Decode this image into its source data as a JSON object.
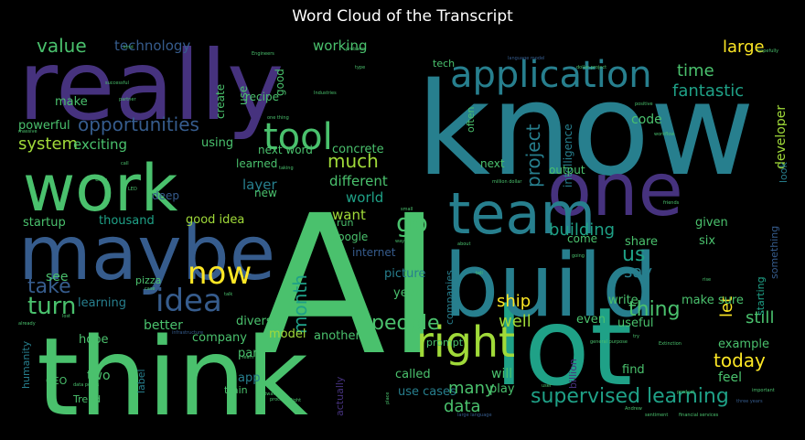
{
  "title": "Word Cloud of the Transcript",
  "chart_data": {
    "type": "wordcloud",
    "title": "Word Cloud of the Transcript",
    "background": "#000000",
    "colormap": [
      "#440154",
      "#46327e",
      "#365c8d",
      "#277f8e",
      "#1fa187",
      "#4ac16d",
      "#a0da39",
      "#fde725"
    ],
    "words": [
      {
        "text": "AI",
        "weight": 100,
        "color": "#4ac16d"
      },
      {
        "text": "know",
        "weight": 92,
        "color": "#277f8e"
      },
      {
        "text": "really",
        "weight": 78,
        "color": "#46327e"
      },
      {
        "text": "think",
        "weight": 77,
        "color": "#4ac16d"
      },
      {
        "text": "lot",
        "weight": 73,
        "color": "#1fa187"
      },
      {
        "text": "build",
        "weight": 62,
        "color": "#277f8e"
      },
      {
        "text": "one",
        "weight": 54,
        "color": "#46327e"
      },
      {
        "text": "maybe",
        "weight": 52,
        "color": "#365c8d"
      },
      {
        "text": "work",
        "weight": 50,
        "color": "#4ac16d"
      },
      {
        "text": "team",
        "weight": 42,
        "color": "#277f8e"
      },
      {
        "text": "right",
        "weight": 38,
        "color": "#a0da39"
      },
      {
        "text": "application",
        "weight": 33,
        "color": "#277f8e"
      },
      {
        "text": "tool",
        "weight": 30,
        "color": "#4ac16d"
      },
      {
        "text": "idea",
        "weight": 27,
        "color": "#365c8d"
      },
      {
        "text": "now",
        "weight": 27,
        "color": "#fde725"
      },
      {
        "text": "go",
        "weight": 22,
        "color": "#4ac16d"
      },
      {
        "text": "people",
        "weight": 21,
        "color": "#4ac16d"
      },
      {
        "text": "turn",
        "weight": 20,
        "color": "#4ac16d"
      },
      {
        "text": "supervised learning",
        "weight": 19,
        "color": "#1fa187"
      },
      {
        "text": "thing",
        "weight": 19,
        "color": "#4ac16d"
      },
      {
        "text": "us",
        "weight": 19,
        "color": "#1fa187"
      },
      {
        "text": "take",
        "weight": 19,
        "color": "#365c8d"
      },
      {
        "text": "opportunities",
        "weight": 18,
        "color": "#365c8d"
      },
      {
        "text": "project",
        "weight": 18,
        "color": "#277f8e"
      },
      {
        "text": "value",
        "weight": 17,
        "color": "#4ac16d"
      },
      {
        "text": "much",
        "weight": 17,
        "color": "#a0da39"
      },
      {
        "text": "month",
        "weight": 17,
        "color": "#1fa187"
      },
      {
        "text": "system",
        "weight": 16,
        "color": "#a0da39"
      },
      {
        "text": "large",
        "weight": 16,
        "color": "#fde725"
      },
      {
        "text": "today",
        "weight": 16,
        "color": "#fde725"
      },
      {
        "text": "say",
        "weight": 16,
        "color": "#277f8e"
      },
      {
        "text": "many",
        "weight": 16,
        "color": "#4ac16d"
      },
      {
        "text": "data",
        "weight": 16,
        "color": "#4ac16d"
      },
      {
        "text": "well",
        "weight": 16,
        "color": "#a0da39"
      },
      {
        "text": "time",
        "weight": 15,
        "color": "#4ac16d"
      },
      {
        "text": "fantastic",
        "weight": 15,
        "color": "#1fa187"
      },
      {
        "text": "building",
        "weight": 15,
        "color": "#1fa187"
      },
      {
        "text": "let",
        "weight": 15,
        "color": "#fde725"
      },
      {
        "text": "still",
        "weight": 15,
        "color": "#4ac16d"
      },
      {
        "text": "ship",
        "weight": 15,
        "color": "#fde725"
      },
      {
        "text": "exciting",
        "weight": 14,
        "color": "#4ac16d"
      },
      {
        "text": "technology",
        "weight": 14,
        "color": "#365c8d"
      },
      {
        "text": "working",
        "weight": 14,
        "color": "#4ac16d"
      },
      {
        "text": "different",
        "weight": 14,
        "color": "#4ac16d"
      },
      {
        "text": "world",
        "weight": 14,
        "color": "#1fa187"
      },
      {
        "text": "want",
        "weight": 14,
        "color": "#a0da39"
      },
      {
        "text": "layer",
        "weight": 14,
        "color": "#277f8e"
      },
      {
        "text": "see",
        "weight": 13,
        "color": "#4ac16d"
      },
      {
        "text": "better",
        "weight": 13,
        "color": "#4ac16d"
      },
      {
        "text": "two",
        "weight": 13,
        "color": "#4ac16d"
      },
      {
        "text": "feel",
        "weight": 13,
        "color": "#4ac16d"
      },
      {
        "text": "will",
        "weight": 13,
        "color": "#4ac16d"
      },
      {
        "text": "developer",
        "weight": 13,
        "color": "#a0da39"
      },
      {
        "text": "code",
        "weight": 12,
        "color": "#4ac16d"
      },
      {
        "text": "make",
        "weight": 12,
        "color": "#4ac16d"
      },
      {
        "text": "powerful",
        "weight": 12,
        "color": "#4ac16d"
      },
      {
        "text": "using",
        "weight": 12,
        "color": "#4ac16d"
      },
      {
        "text": "concrete",
        "weight": 12,
        "color": "#4ac16d"
      },
      {
        "text": "thousand",
        "weight": 12,
        "color": "#1fa187"
      },
      {
        "text": "good idea",
        "weight": 12,
        "color": "#a0da39"
      },
      {
        "text": "startup",
        "weight": 12,
        "color": "#4ac16d"
      },
      {
        "text": "learning",
        "weight": 12,
        "color": "#277f8e"
      },
      {
        "text": "hope",
        "weight": 12,
        "color": "#4ac16d"
      },
      {
        "text": "company",
        "weight": 12,
        "color": "#4ac16d"
      },
      {
        "text": "model",
        "weight": 12,
        "color": "#a0da39"
      },
      {
        "text": "diverse",
        "weight": 12,
        "color": "#4ac16d"
      },
      {
        "text": "part",
        "weight": 12,
        "color": "#4ac16d"
      },
      {
        "text": "another",
        "weight": 12,
        "color": "#4ac16d"
      },
      {
        "text": "app",
        "weight": 12,
        "color": "#277f8e"
      },
      {
        "text": "called",
        "weight": 12,
        "color": "#4ac16d"
      },
      {
        "text": "use cases",
        "weight": 12,
        "color": "#277f8e"
      },
      {
        "text": "play",
        "weight": 12,
        "color": "#4ac16d"
      },
      {
        "text": "find",
        "weight": 12,
        "color": "#4ac16d"
      },
      {
        "text": "make sure",
        "weight": 12,
        "color": "#4ac16d"
      },
      {
        "text": "example",
        "weight": 12,
        "color": "#4ac16d"
      },
      {
        "text": "write",
        "weight": 12,
        "color": "#4ac16d"
      },
      {
        "text": "even",
        "weight": 12,
        "color": "#4ac16d"
      },
      {
        "text": "useful",
        "weight": 12,
        "color": "#4ac16d"
      },
      {
        "text": "given",
        "weight": 12,
        "color": "#4ac16d"
      },
      {
        "text": "share",
        "weight": 12,
        "color": "#4ac16d"
      },
      {
        "text": "six",
        "weight": 12,
        "color": "#4ac16d"
      },
      {
        "text": "picture",
        "weight": 12,
        "color": "#277f8e"
      },
      {
        "text": "year",
        "weight": 12,
        "color": "#4ac16d"
      },
      {
        "text": "Google",
        "weight": 11,
        "color": "#4ac16d"
      },
      {
        "text": "internet",
        "weight": 11,
        "color": "#365c8d"
      },
      {
        "text": "come",
        "weight": 11,
        "color": "#4ac16d"
      },
      {
        "text": "intelligence",
        "weight": 11,
        "color": "#277f8e"
      },
      {
        "text": "output",
        "weight": 11,
        "color": "#4ac16d"
      },
      {
        "text": "next",
        "weight": 11,
        "color": "#4ac16d"
      },
      {
        "text": "next word",
        "weight": 11,
        "color": "#4ac16d"
      },
      {
        "text": "learned",
        "weight": 11,
        "color": "#4ac16d"
      },
      {
        "text": "new",
        "weight": 11,
        "color": "#4ac16d"
      },
      {
        "text": "deep",
        "weight": 11,
        "color": "#365c8d"
      },
      {
        "text": "recipe",
        "weight": 11,
        "color": "#4ac16d"
      },
      {
        "text": "create",
        "weight": 11,
        "color": "#4ac16d"
      },
      {
        "text": "use",
        "weight": 11,
        "color": "#4ac16d"
      },
      {
        "text": "good",
        "weight": 11,
        "color": "#4ac16d"
      },
      {
        "text": "tech",
        "weight": 10,
        "color": "#4ac16d"
      },
      {
        "text": "often",
        "weight": 10,
        "color": "#4ac16d"
      },
      {
        "text": "companies",
        "weight": 10,
        "color": "#277f8e"
      },
      {
        "text": "billion",
        "weight": 10,
        "color": "#46327e"
      },
      {
        "text": "prompt",
        "weight": 10,
        "color": "#4ac16d"
      },
      {
        "text": "pizza",
        "weight": 10,
        "color": "#4ac16d"
      },
      {
        "text": "CEO",
        "weight": 10,
        "color": "#4ac16d"
      },
      {
        "text": "Trend",
        "weight": 10,
        "color": "#4ac16d"
      },
      {
        "text": "humanity",
        "weight": 10,
        "color": "#277f8e"
      },
      {
        "text": "label",
        "weight": 10,
        "color": "#277f8e"
      },
      {
        "text": "train",
        "weight": 10,
        "color": "#4ac16d"
      },
      {
        "text": "actually",
        "weight": 10,
        "color": "#46327e"
      },
      {
        "text": "look",
        "weight": 10,
        "color": "#277f8e"
      },
      {
        "text": "something",
        "weight": 10,
        "color": "#365c8d"
      },
      {
        "text": "starting",
        "weight": 10,
        "color": "#1fa187"
      },
      {
        "text": "run",
        "weight": 10,
        "color": "#4ac16d"
      },
      {
        "text": "one thing",
        "weight": 6,
        "color": "#4ac16d"
      },
      {
        "text": "million dollar",
        "weight": 6,
        "color": "#4ac16d"
      },
      {
        "text": "dollar project",
        "weight": 6,
        "color": "#4ac16d"
      },
      {
        "text": "language model",
        "weight": 6,
        "color": "#365c8d"
      },
      {
        "text": "large language",
        "weight": 6,
        "color": "#365c8d"
      },
      {
        "text": "general purpose",
        "weight": 6,
        "color": "#4ac16d"
      },
      {
        "text": "financial services",
        "weight": 6,
        "color": "#4ac16d"
      },
      {
        "text": "three years",
        "weight": 6,
        "color": "#365c8d"
      },
      {
        "text": "data points",
        "weight": 6,
        "color": "#4ac16d"
      },
      {
        "text": "hopefully",
        "weight": 6,
        "color": "#4ac16d"
      },
      {
        "text": "positive",
        "weight": 6,
        "color": "#4ac16d"
      },
      {
        "text": "successful",
        "weight": 6,
        "color": "#4ac16d"
      },
      {
        "text": "partner",
        "weight": 6,
        "color": "#4ac16d"
      },
      {
        "text": "Engineers",
        "weight": 6,
        "color": "#4ac16d"
      },
      {
        "text": "Industries",
        "weight": 6,
        "color": "#4ac16d"
      },
      {
        "text": "workflow",
        "weight": 6,
        "color": "#4ac16d"
      },
      {
        "text": "product",
        "weight": 6,
        "color": "#4ac16d"
      },
      {
        "text": "important",
        "weight": 6,
        "color": "#4ac16d"
      },
      {
        "text": "Andrew",
        "weight": 6,
        "color": "#4ac16d"
      },
      {
        "text": "user",
        "weight": 6,
        "color": "#4ac16d"
      },
      {
        "text": "friends",
        "weight": 6,
        "color": "#4ac16d"
      },
      {
        "text": "sentiment",
        "weight": 6,
        "color": "#4ac16d"
      },
      {
        "text": "already",
        "weight": 6,
        "color": "#4ac16d"
      },
      {
        "text": "infrastructure",
        "weight": 6,
        "color": "#365c8d"
      },
      {
        "text": "software",
        "weight": 6,
        "color": "#4ac16d"
      },
      {
        "text": "Extinction",
        "weight": 6,
        "color": "#4ac16d"
      },
      {
        "text": "place",
        "weight": 6,
        "color": "#4ac16d"
      },
      {
        "text": "light",
        "weight": 6,
        "color": "#4ac16d"
      },
      {
        "text": "problem",
        "weight": 6,
        "color": "#4ac16d"
      },
      {
        "text": "massive",
        "weight": 6,
        "color": "#4ac16d"
      },
      {
        "text": "type",
        "weight": 6,
        "color": "#4ac16d"
      },
      {
        "text": "case",
        "weight": 6,
        "color": "#4ac16d"
      },
      {
        "text": "kind",
        "weight": 6,
        "color": "#4ac16d"
      },
      {
        "text": "call",
        "weight": 6,
        "color": "#4ac16d"
      },
      {
        "text": "LED",
        "weight": 6,
        "color": "#4ac16d"
      },
      {
        "text": "wave",
        "weight": 6,
        "color": "#4ac16d"
      },
      {
        "text": "small",
        "weight": 6,
        "color": "#4ac16d"
      },
      {
        "text": "going",
        "weight": 6,
        "color": "#4ac16d"
      },
      {
        "text": "rise",
        "weight": 6,
        "color": "#4ac16d"
      },
      {
        "text": "try",
        "weight": 6,
        "color": "#4ac16d"
      },
      {
        "text": "lost",
        "weight": 6,
        "color": "#4ac16d"
      },
      {
        "text": "learn",
        "weight": 6,
        "color": "#4ac16d"
      },
      {
        "text": "talk",
        "weight": 6,
        "color": "#4ac16d"
      },
      {
        "text": "taking",
        "weight": 6,
        "color": "#4ac16d"
      },
      {
        "text": "process",
        "weight": 6,
        "color": "#4ac16d"
      },
      {
        "text": "about",
        "weight": 6,
        "color": "#4ac16d"
      },
      {
        "text": "way",
        "weight": 6,
        "color": "#4ac16d"
      },
      {
        "text": "tell",
        "weight": 6,
        "color": "#4ac16d"
      }
    ]
  }
}
